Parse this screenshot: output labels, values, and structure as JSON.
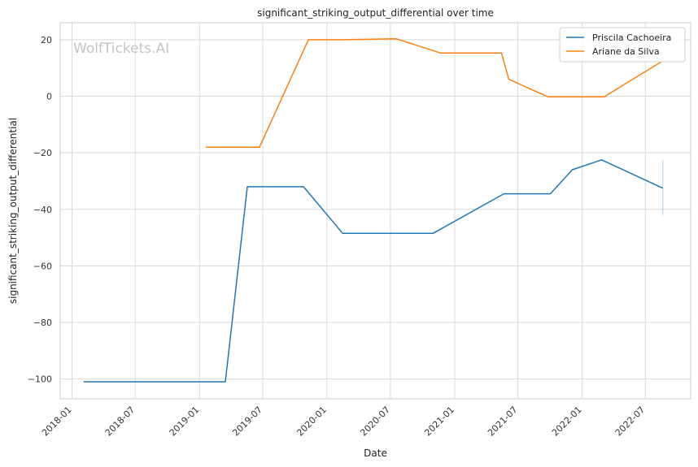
{
  "chart_data": {
    "type": "line",
    "title": "significant_striking_output_differential over time",
    "xlabel": "Date",
    "ylabel": "significant_striking_output_differential",
    "watermark": "WolfTickets.AI",
    "xlim": [
      "2017-11-28",
      "2022-11-08"
    ],
    "ylim": [
      -107,
      26
    ],
    "x_ticks": [
      "2018-01",
      "2018-07",
      "2019-01",
      "2019-07",
      "2020-01",
      "2020-07",
      "2021-01",
      "2021-07",
      "2022-01",
      "2022-07"
    ],
    "y_ticks": [
      20,
      0,
      -20,
      -40,
      -60,
      -80,
      -100
    ],
    "grid": true,
    "legend_position": "top-right",
    "series": [
      {
        "name": "Priscila Cachoeira",
        "color": "#1f77b4",
        "points": [
          {
            "x": "2018-02-03",
            "y": -101
          },
          {
            "x": "2019-03-16",
            "y": -101
          },
          {
            "x": "2019-05-18",
            "y": -32
          },
          {
            "x": "2019-10-26",
            "y": -32
          },
          {
            "x": "2020-02-15",
            "y": -48.5
          },
          {
            "x": "2020-10-31",
            "y": -48.5
          },
          {
            "x": "2021-05-22",
            "y": -34.5
          },
          {
            "x": "2021-10-02",
            "y": -34.5
          },
          {
            "x": "2021-12-04",
            "y": -26
          },
          {
            "x": "2022-02-26",
            "y": -22.5
          },
          {
            "x": "2022-08-20",
            "y": -32.5
          }
        ]
      },
      {
        "name": "Ariane da Silva",
        "color": "#ff7f0e",
        "points": [
          {
            "x": "2019-01-19",
            "y": -18
          },
          {
            "x": "2019-06-22",
            "y": -18
          },
          {
            "x": "2019-11-09",
            "y": 20
          },
          {
            "x": "2020-02-22",
            "y": 20
          },
          {
            "x": "2020-07-18",
            "y": 20.3
          },
          {
            "x": "2020-11-21",
            "y": 15.3
          },
          {
            "x": "2021-05-15",
            "y": 15.3
          },
          {
            "x": "2021-06-05",
            "y": 6
          },
          {
            "x": "2021-09-25",
            "y": -0.2
          },
          {
            "x": "2022-03-05",
            "y": -0.2
          },
          {
            "x": "2022-08-20",
            "y": 12.5
          }
        ]
      }
    ],
    "error_band": {
      "x": "2022-08-20",
      "y_low": -42,
      "y_high": -22.5,
      "color": "#1f77b4"
    }
  }
}
